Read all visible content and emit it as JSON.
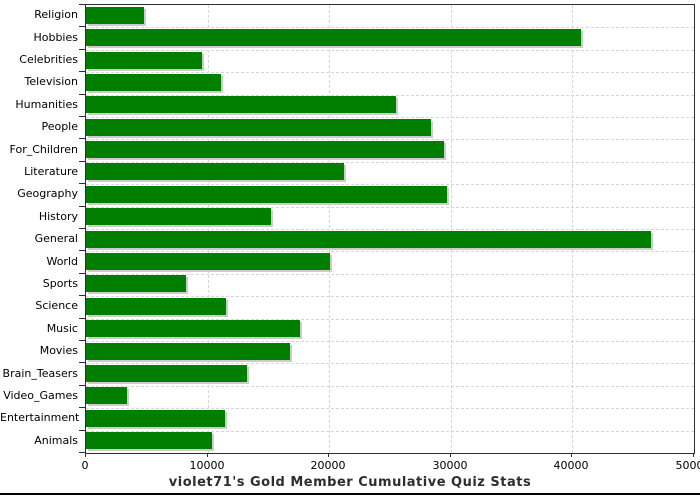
{
  "chart_data": {
    "type": "bar",
    "orientation": "horizontal",
    "title": "violet71's Gold Member Cumulative Quiz Stats",
    "categories": [
      "Religion",
      "Hobbies",
      "Celebrities",
      "Television",
      "Humanities",
      "People",
      "For_Children",
      "Literature",
      "Geography",
      "History",
      "General",
      "World",
      "Sports",
      "Science",
      "Music",
      "Movies",
      "Brain_Teasers",
      "Video_Games",
      "Entertainment",
      "Animals"
    ],
    "values": [
      4800,
      40700,
      9500,
      11100,
      25500,
      28400,
      29400,
      21200,
      29700,
      15200,
      46500,
      20100,
      8200,
      11500,
      17600,
      16800,
      13200,
      3400,
      11400,
      10400
    ],
    "xlabel": "",
    "ylabel": "",
    "xlim": [
      0,
      50000
    ],
    "xtick_values": [
      0,
      10000,
      20000,
      30000,
      40000,
      50000
    ],
    "xtick_labels": [
      "0",
      "10000",
      "20000",
      "30000",
      "40000",
      "50000"
    ],
    "grid": "dashed",
    "legend": "none",
    "bar_color": "#007e00",
    "bar_shadow_color": "#cccccc",
    "gridline_color": "#d6d6d6",
    "frame_color": "#2f2f2f",
    "title_color": "#2e2e2e"
  }
}
